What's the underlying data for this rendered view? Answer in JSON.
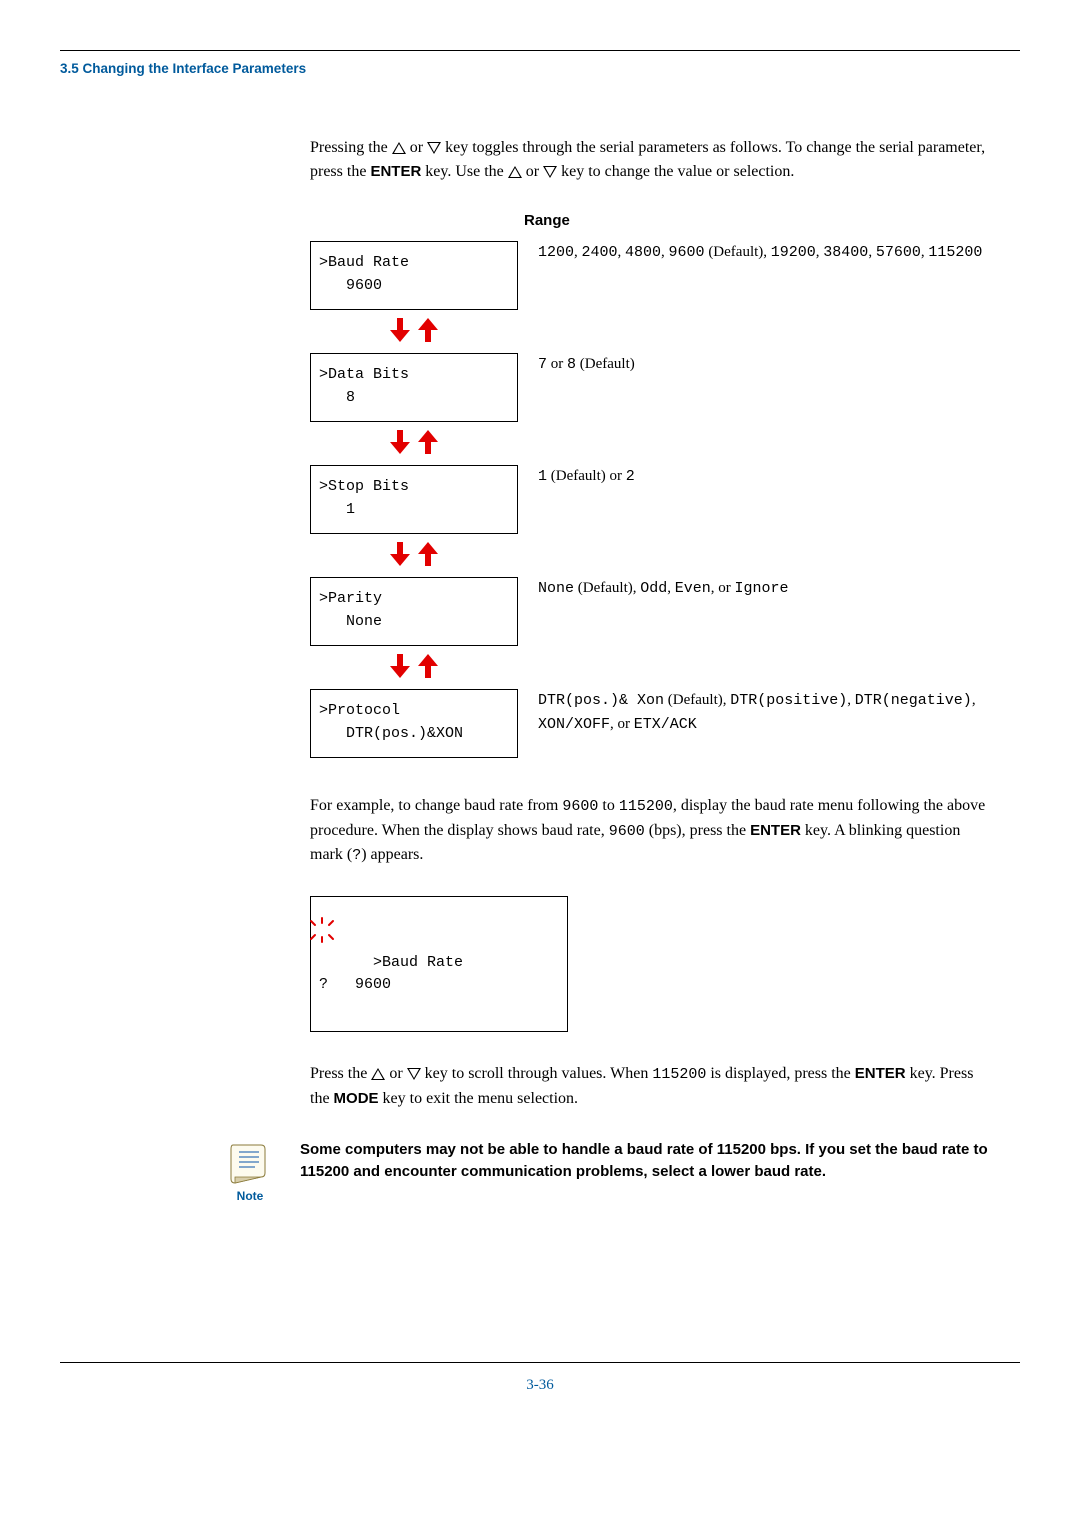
{
  "section_header": "3.5 Changing the Interface Parameters",
  "intro": {
    "part1": "Pressing the ",
    "part2": " or ",
    "part3": " key toggles through the serial parameters as follows. To change the serial parameter, press the ",
    "enter": "ENTER",
    "part4": " key. Use the ",
    "part5": " or ",
    "part6": " key to change the value or selection."
  },
  "range_header": "Range",
  "params": [
    {
      "lcd_line1": ">Baud Rate",
      "lcd_line2": "   9600",
      "range": [
        {
          "t": "1200",
          "m": true
        },
        {
          "t": ", "
        },
        {
          "t": "2400",
          "m": true
        },
        {
          "t": ", "
        },
        {
          "t": "4800",
          "m": true
        },
        {
          "t": ", "
        },
        {
          "t": "9600",
          "m": true
        },
        {
          "t": " (Default), "
        },
        {
          "t": "19200",
          "m": true
        },
        {
          "t": ", "
        },
        {
          "t": "38400",
          "m": true
        },
        {
          "t": ", "
        },
        {
          "t": "57600",
          "m": true
        },
        {
          "t": ", "
        },
        {
          "t": "115200",
          "m": true
        }
      ]
    },
    {
      "lcd_line1": ">Data Bits",
      "lcd_line2": "   8",
      "range": [
        {
          "t": "7",
          "m": true
        },
        {
          "t": " or "
        },
        {
          "t": "8",
          "m": true
        },
        {
          "t": " (Default)"
        }
      ]
    },
    {
      "lcd_line1": ">Stop Bits",
      "lcd_line2": "   1",
      "range": [
        {
          "t": "1",
          "m": true
        },
        {
          "t": " (Default) or "
        },
        {
          "t": "2",
          "m": true
        }
      ]
    },
    {
      "lcd_line1": ">Parity",
      "lcd_line2": "   None",
      "range": [
        {
          "t": "None",
          "m": true
        },
        {
          "t": " (Default), "
        },
        {
          "t": "Odd",
          "m": true
        },
        {
          "t": ", "
        },
        {
          "t": "Even",
          "m": true
        },
        {
          "t": ", or "
        },
        {
          "t": "Ignore",
          "m": true
        }
      ]
    },
    {
      "lcd_line1": ">Protocol",
      "lcd_line2": "   DTR(pos.)&XON",
      "range": [
        {
          "t": "DTR(pos.)& Xon",
          "m": true
        },
        {
          "t": " (Default), "
        },
        {
          "t": "DTR(positive)",
          "m": true
        },
        {
          "t": ", "
        },
        {
          "t": "DTR(negative)",
          "m": true
        },
        {
          "t": ", "
        },
        {
          "t": "XON/XOFF",
          "m": true
        },
        {
          "t": ", or "
        },
        {
          "t": "ETX/ACK",
          "m": true
        }
      ]
    }
  ],
  "example": {
    "p1a": "For example, to change baud rate from ",
    "v1": "9600",
    "p1b": " to ",
    "v2": "115200",
    "p1c": ", display the baud rate menu following the above procedure. When the display shows baud rate, ",
    "v3": "9600",
    "p1d": " (bps), press the ",
    "enter": "ENTER",
    "p1e": " key. A blinking question mark (",
    "q": "?",
    "p1f": ") appears."
  },
  "example_lcd": {
    "line1": ">Baud Rate",
    "line2": "?   9600"
  },
  "after": {
    "p1": "Press the ",
    "p2": " or ",
    "p3": " key to scroll through values. When ",
    "v": "115200",
    "p4": " is displayed, press the ",
    "enter": "ENTER",
    "p5": " key. Press the ",
    "mode": "MODE",
    "p6": " key to exit the menu selection."
  },
  "note_label": "Note",
  "note_text": "Some computers may not be able to handle a baud rate of 115200 bps. If you set the baud rate to 115200 and encounter communication problems, select a lower baud rate.",
  "page_number": "3-36",
  "colors": {
    "accent": "#005a9c",
    "red": "#e20000"
  }
}
